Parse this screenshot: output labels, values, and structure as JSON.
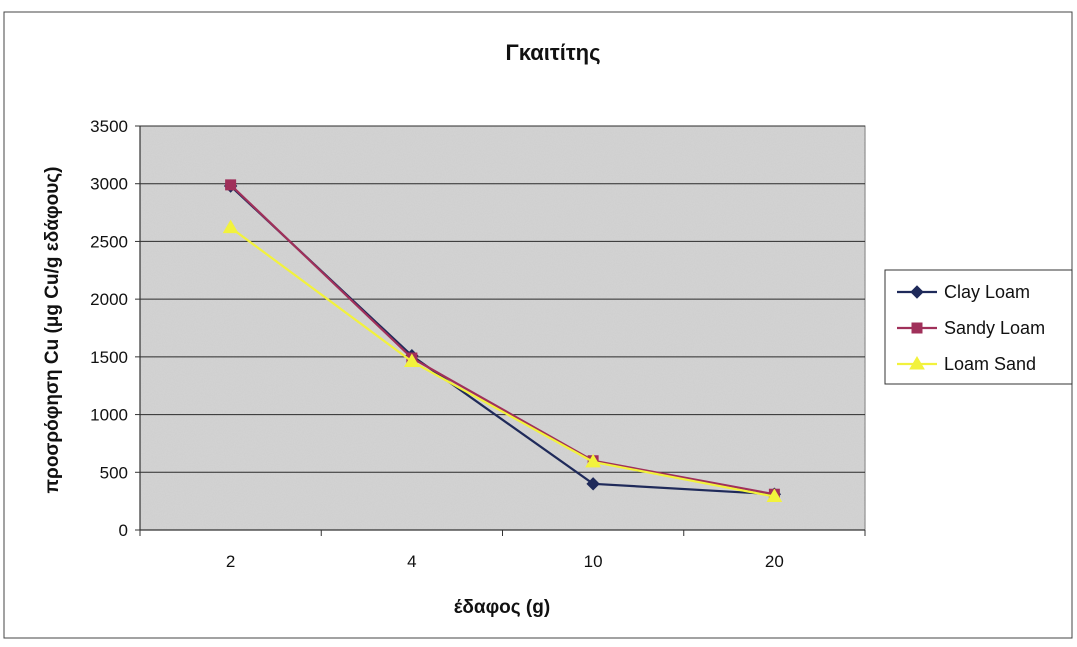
{
  "chart_data": {
    "type": "line",
    "title": "Γκαιτίτης",
    "xlabel": "έδαφος (g)",
    "ylabel": "προσρόφηση Cu (μg Cu/g εδάφους)",
    "categories": [
      "2",
      "4",
      "10",
      "20"
    ],
    "ylim": [
      0,
      3500
    ],
    "yticks": [
      0,
      500,
      1000,
      1500,
      2000,
      2500,
      3000,
      3500
    ],
    "grid": true,
    "legend_position": "right",
    "series": [
      {
        "name": "Clay Loam",
        "values": [
          2980,
          1510,
          400,
          310
        ],
        "color": "#1f2a5a",
        "marker": "diamond"
      },
      {
        "name": "Sandy Loam",
        "values": [
          2990,
          1490,
          600,
          310
        ],
        "color": "#a0305a",
        "marker": "square"
      },
      {
        "name": "Loam Sand",
        "values": [
          2620,
          1460,
          590,
          290
        ],
        "color": "#f2f23c",
        "marker": "triangle"
      }
    ]
  }
}
